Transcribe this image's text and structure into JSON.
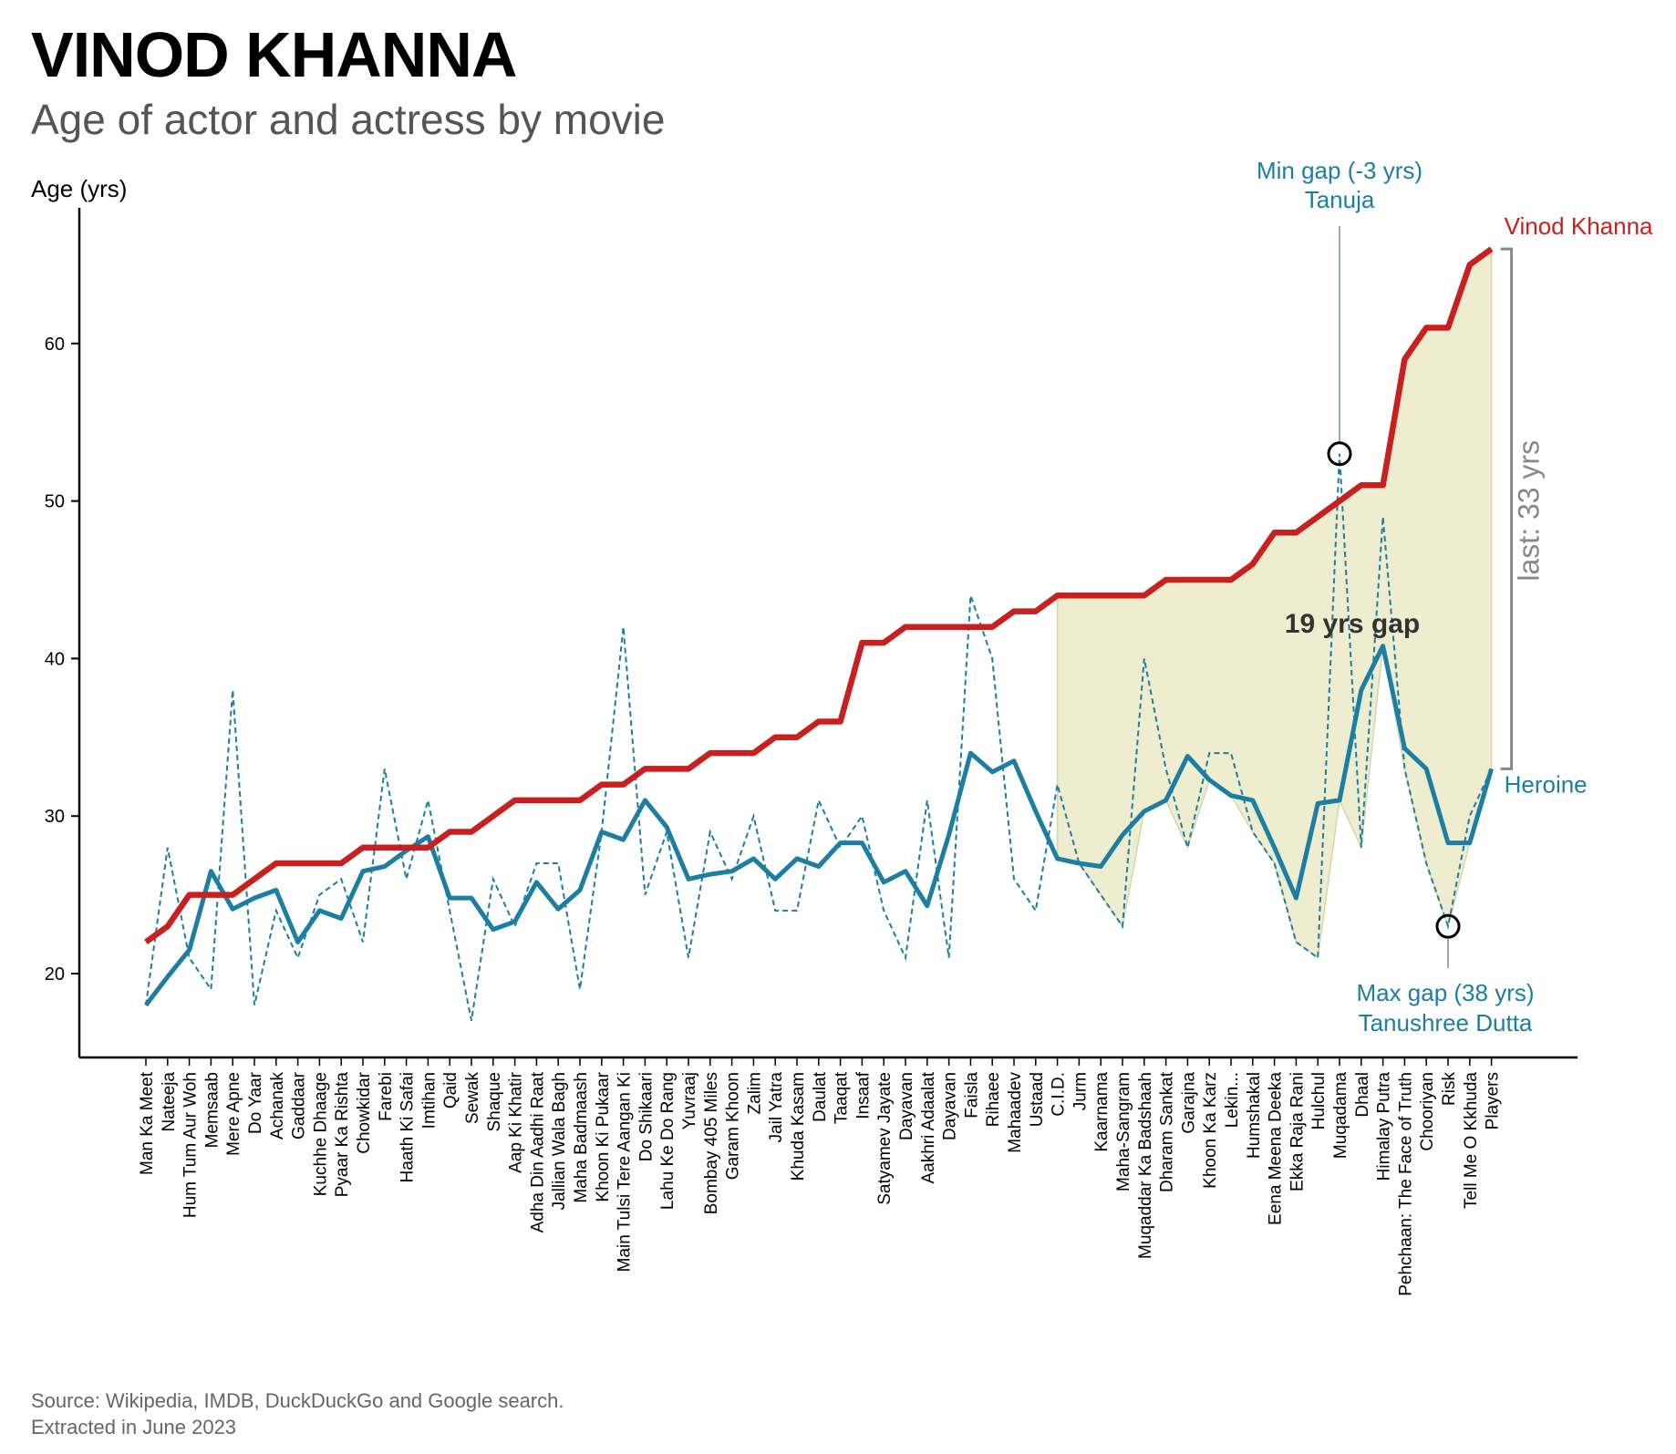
{
  "title": "VINOD KHANNA",
  "subtitle": "Age of actor and actress by movie",
  "source_lines": [
    "Source: Wikipedia, IMDB, DuckDuckGo and Google search.",
    "Extracted in June 2023"
  ],
  "colors": {
    "actor": "#c8201e",
    "heroine": "#1b7ea2",
    "gap_fill": "#eeedcf",
    "bracket": "#888888",
    "annotation": "#1b7ea2",
    "gap_text": "#333333"
  },
  "chart_data": {
    "type": "line",
    "ylabel": "Age (yrs)",
    "ylim": [
      15,
      68
    ],
    "yticks": [
      20,
      30,
      40,
      50,
      60
    ],
    "grid": false,
    "categories": [
      "Man Ka Meet",
      "Nateeja",
      "Hum Tum Aur Woh",
      "Memsaab",
      "Mere Apne",
      "Do Yaar",
      "Achanak",
      "Gaddaar",
      "Kuchhe Dhaage",
      "Pyaar Ka Rishta",
      "Chowkidar",
      "Farebi",
      "Haath Ki Safai",
      "Imtihan",
      "Qaid",
      "Sewak",
      "Shaque",
      "Aap Ki Khatir",
      "Adha Din Aadhi Raat",
      "Jallian Wala Bagh",
      "Maha Badmaash",
      "Khoon Ki Pukaar",
      "Main Tulsi Tere Aangan Ki",
      "Do Shikaari",
      "Lahu Ke Do Rang",
      "Yuvraaj",
      "Bombay 405 Miles",
      "Garam Khoon",
      "Zalim",
      "Jail Yatra",
      "Khuda Kasam",
      "Daulat",
      "Taaqat",
      "Insaaf",
      "Satyamev Jayate",
      "Dayavan",
      "Aakhri Adaalat",
      "Dayavan",
      "Faisla",
      "Rihaee",
      "Mahaadev",
      "Ustaad",
      "C.I.D.",
      "Jurm",
      "Kaarnama",
      "Maha-Sangram",
      "Muqaddar Ka Badshaah",
      "Dharam Sankat",
      "Garajna",
      "Khoon Ka Karz",
      "Lekin...",
      "Humshakal",
      "Eena Meena Deeka",
      "Ekka Raja Rani",
      "Hulchul",
      "Muqadama",
      "Dhaal",
      "Himalay Putra",
      "Pehchaan: The Face of Truth",
      "Chooriyan",
      "Risk",
      "Tell Me O Kkhuda",
      "Players"
    ],
    "series": [
      {
        "name": "Vinod Khanna",
        "style": "solid-thick",
        "values": [
          22,
          23,
          25,
          25,
          25,
          26,
          27,
          27,
          27,
          27,
          28,
          28,
          28,
          28,
          29,
          29,
          30,
          31,
          31,
          31,
          31,
          32,
          32,
          33,
          33,
          33,
          34,
          34,
          34,
          35,
          35,
          36,
          36,
          41,
          41,
          42,
          42,
          42,
          42,
          42,
          43,
          43,
          44,
          44,
          44,
          44,
          44,
          45,
          45,
          45,
          45,
          46,
          48,
          48,
          49,
          50,
          51,
          51,
          59,
          61,
          61,
          65,
          66
        ]
      },
      {
        "name": "Heroine",
        "style": "solid-smoothed",
        "values": [
          18,
          19.8,
          21.5,
          26.5,
          24.1,
          24.8,
          25.3,
          22,
          24,
          23.5,
          26.5,
          26.8,
          27.8,
          28.7,
          24.8,
          24.8,
          22.8,
          23.3,
          25.8,
          24.1,
          25.3,
          29,
          28.5,
          31,
          29.3,
          26,
          26.3,
          26.5,
          27.3,
          26,
          27.3,
          26.8,
          28.3,
          28.3,
          25.8,
          26.5,
          24.3,
          28.8,
          34,
          32.8,
          33.5,
          30.3,
          27.3,
          27,
          26.8,
          28.8,
          30.3,
          31,
          33.8,
          32.3,
          31.3,
          31,
          28,
          24.8,
          30.8,
          31,
          38,
          40.8,
          34.3,
          33,
          28.3,
          28.3,
          33
        ]
      },
      {
        "name": "Heroine (raw)",
        "style": "dashed-thin",
        "values": [
          18,
          28,
          21,
          19,
          38,
          18,
          24,
          21,
          25,
          26,
          22,
          33,
          26,
          31,
          24,
          17,
          26,
          23,
          27,
          27,
          19,
          29,
          42,
          25,
          29,
          21,
          29,
          26,
          30,
          24,
          24,
          31,
          28,
          30,
          24,
          21,
          31,
          21,
          44,
          40,
          26,
          24,
          32,
          27,
          25,
          23,
          40,
          33,
          28,
          34,
          34,
          29,
          27,
          22,
          21,
          53,
          28,
          49,
          33,
          27,
          23,
          30,
          33
        ]
      }
    ],
    "gap_region": {
      "from": "C.I.D.",
      "to": "Players",
      "label": "19 yrs gap"
    },
    "last_gap_label": "last: 33 yrs",
    "series_labels": {
      "actor": "Vinod Khanna",
      "heroine": "Heroine"
    },
    "annotations": {
      "min_gap": {
        "line1": "Min gap (-3 yrs)",
        "line2": "Tanuja",
        "index": 55,
        "value": 53
      },
      "max_gap": {
        "line1": "Max gap (38 yrs)",
        "line2": "Tanushree Dutta",
        "index": 60,
        "value": 23
      }
    }
  }
}
